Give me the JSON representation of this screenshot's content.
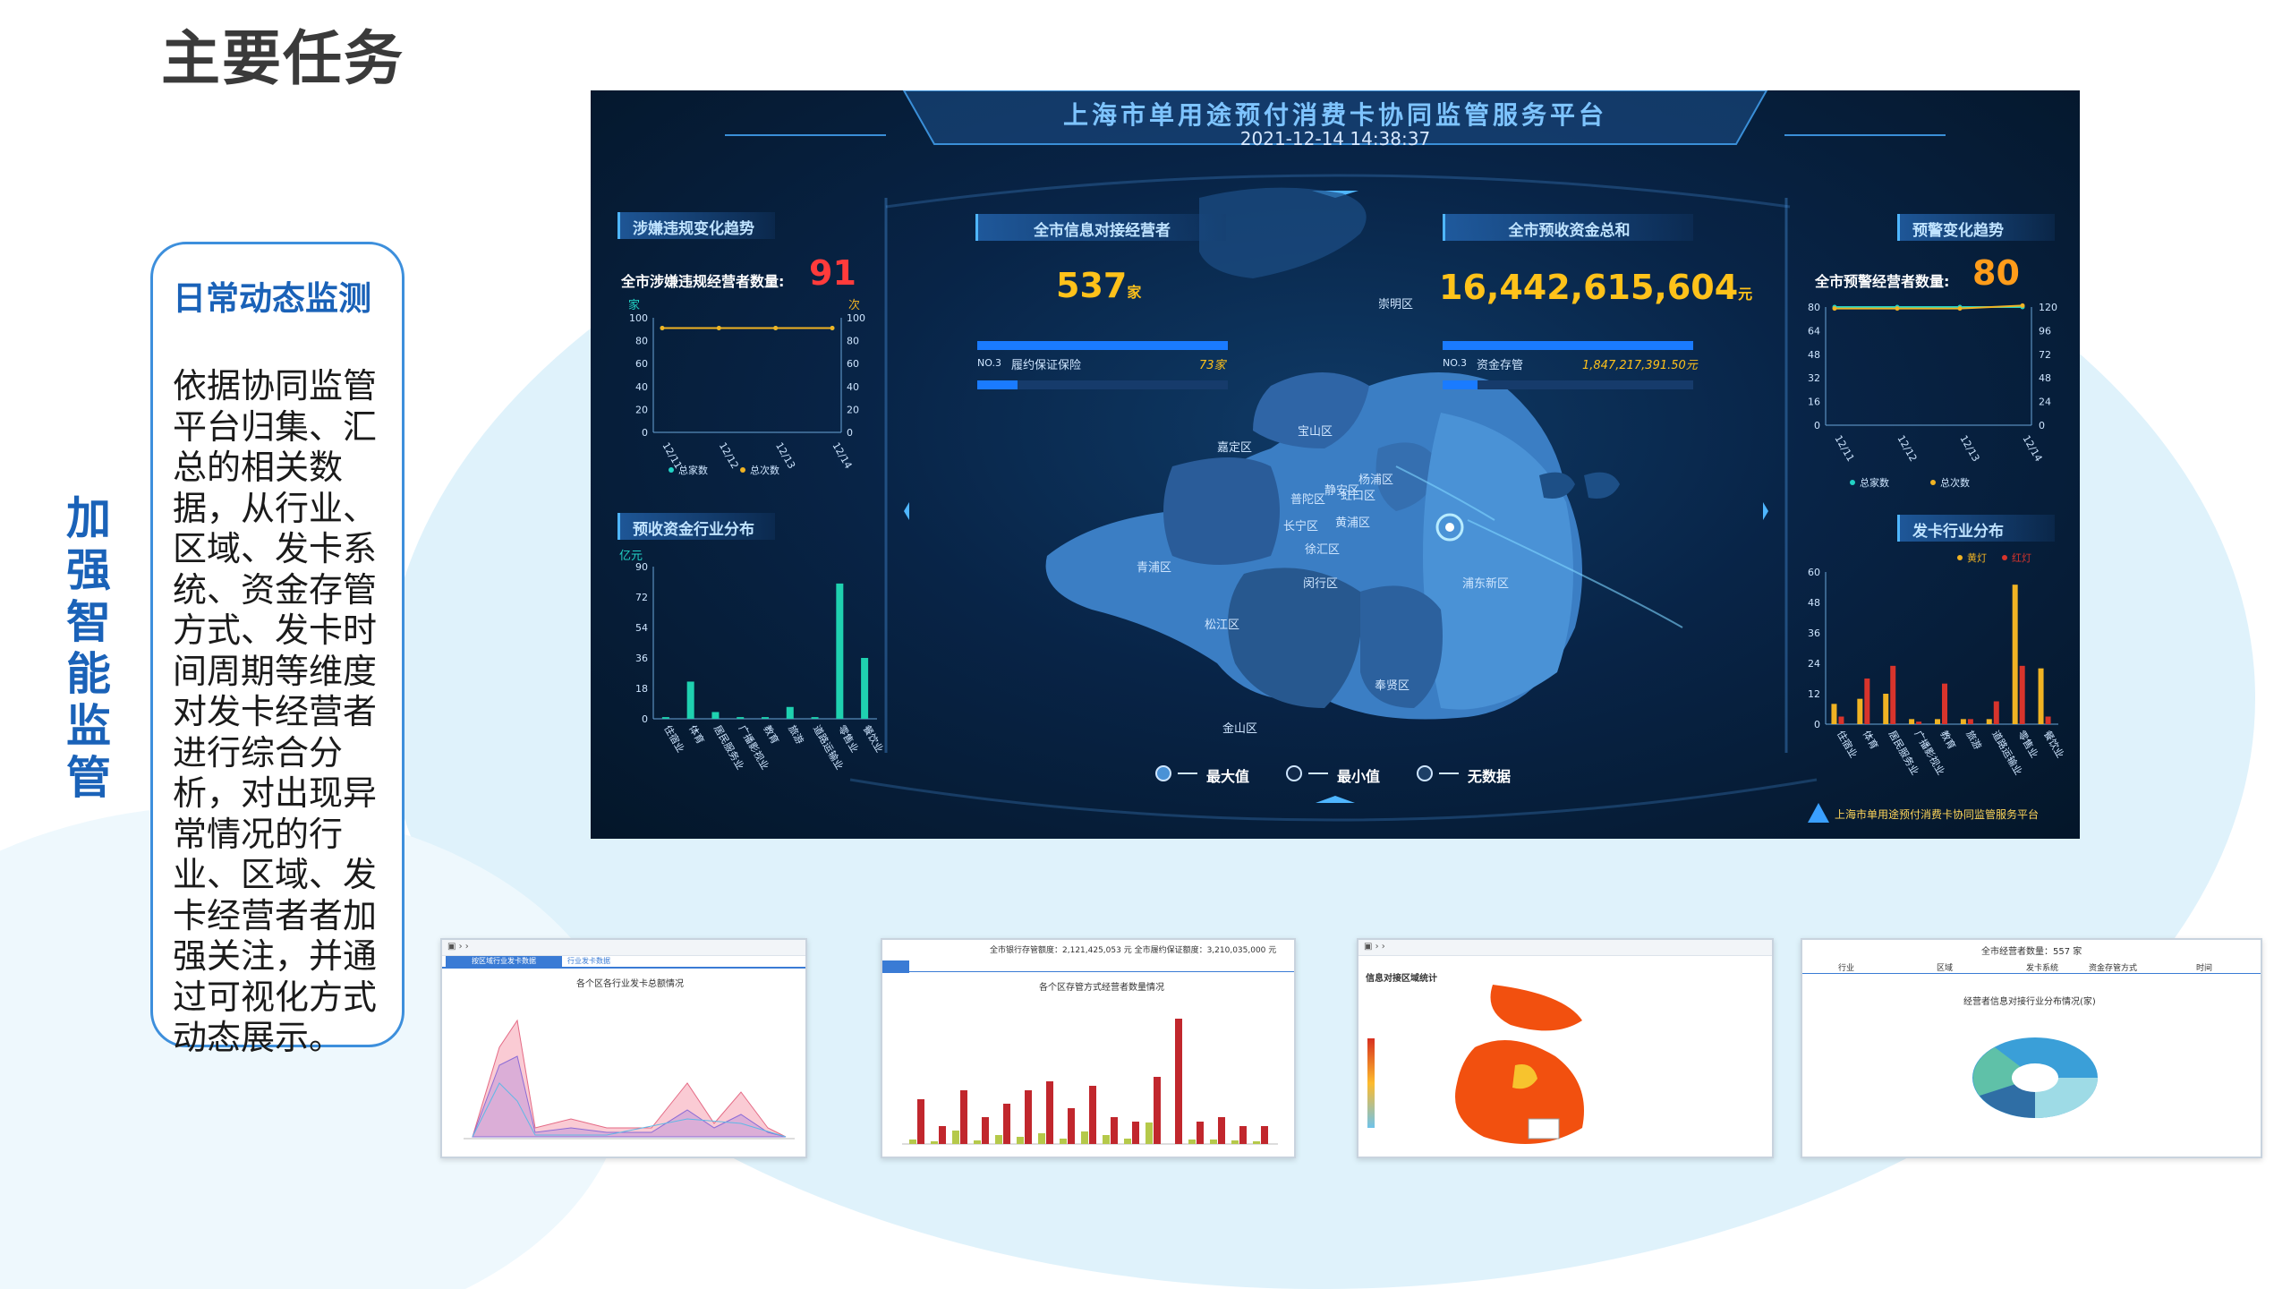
{
  "page": {
    "title": "主要任务",
    "side_title": "加强智能监管"
  },
  "card": {
    "heading": "日常动态监测",
    "body": "依据协同监管平台归集、汇总的相关数据，从行业、区域、发卡系统、资金存管方式、发卡时间周期等维度对发卡经营者进行综合分析，对出现异常情况的行业、区域、发卡经营者者加强关注，并通过可视化方式动态展示。"
  },
  "dashboard": {
    "title": "上海市单用途预付消费卡协同监管服务平台",
    "datetime": "2021-12-14 14:38:37",
    "panel_trend_title": "涉嫌违规变化趋势",
    "violation_label": "全市涉嫌违规经营者数量:",
    "violation_count": "91",
    "panel_prepaid_title": "预收资金行业分布",
    "prepaid_unit": "亿元",
    "panel_operators_title": "全市信息对接经营者",
    "operators_count": "537",
    "operators_unit": "家",
    "operators_no3": "NO.3",
    "operators_no3_name": "履约保证保险",
    "operators_no3_value": "73家",
    "panel_funds_title": "全市预收资金总和",
    "funds_total": "16,442,615,604",
    "funds_unit": "元",
    "funds_no3": "NO.3",
    "funds_no3_name": "资金存管",
    "funds_no3_value": "1,847,217,391.50元",
    "panel_warning_title": "预警变化趋势",
    "warning_label": "全市预警经营者数量:",
    "warning_count": "80",
    "panel_card_title": "发卡行业分布",
    "legend_max": "最大值",
    "legend_min": "最小值",
    "legend_none": "无数据",
    "logo_text": "上海市单用途预付消费卡协同监管服务平台",
    "map_labels": [
      "崇明区",
      "宝山区",
      "嘉定区",
      "杨浦区",
      "普陀区",
      "静安区",
      "虹口区",
      "长宁区",
      "黄浦区",
      "徐汇区",
      "青浦区",
      "闵行区",
      "浦东新区",
      "松江区",
      "奉贤区",
      "金山区"
    ]
  },
  "chart_data": [
    {
      "type": "line",
      "title": "涉嫌违规变化趋势",
      "categories": [
        "12/11",
        "12/12",
        "12/13",
        "12/14"
      ],
      "ylabel_left": "家",
      "ylabel_right": "次",
      "ylim": [
        0,
        100
      ],
      "yticks": [
        0,
        20,
        40,
        60,
        80,
        100
      ],
      "series": [
        {
          "name": "总家数",
          "color": "#22d3c5",
          "values": [
            91,
            91,
            91,
            91
          ]
        },
        {
          "name": "总次数",
          "color": "#f0b323",
          "values": [
            91,
            91,
            91,
            91
          ]
        }
      ]
    },
    {
      "type": "bar",
      "title": "预收资金行业分布",
      "ylabel": "亿元",
      "ylim": [
        0,
        90
      ],
      "yticks": [
        0,
        18,
        36,
        54,
        72,
        90
      ],
      "categories": [
        "住宿业",
        "体育",
        "居民服务业",
        "广播影视业",
        "教育",
        "旅游",
        "道路运输业",
        "零售业",
        "餐饮业"
      ],
      "values": [
        1,
        22,
        4,
        1,
        1,
        7,
        1,
        80,
        36
      ]
    },
    {
      "type": "line",
      "title": "预警变化趋势",
      "categories": [
        "12/11",
        "12/12",
        "12/13",
        "12/14"
      ],
      "ylim_left": [
        0,
        80
      ],
      "yticks_left": [
        0,
        16,
        32,
        48,
        64,
        80
      ],
      "ylim_right": [
        0,
        120
      ],
      "yticks_right": [
        0,
        24,
        48,
        72,
        96,
        120
      ],
      "series": [
        {
          "name": "总家数",
          "color": "#22d3c5",
          "values": [
            80,
            80,
            80,
            80
          ]
        },
        {
          "name": "总次数",
          "color": "#f0b323",
          "values": [
            79,
            79,
            79,
            81
          ]
        }
      ]
    },
    {
      "type": "bar",
      "title": "发卡行业分布",
      "ylim": [
        0,
        60
      ],
      "yticks": [
        0,
        12,
        24,
        36,
        48,
        60
      ],
      "categories": [
        "住宿业",
        "体育",
        "居民服务业",
        "广播影视业",
        "教育",
        "旅游",
        "道路运输业",
        "零售业",
        "餐饮业"
      ],
      "series": [
        {
          "name": "黄灯",
          "color": "#f0b323",
          "values": [
            8,
            10,
            12,
            2,
            2,
            2,
            2,
            55,
            22
          ]
        },
        {
          "name": "红灯",
          "color": "#d8342c",
          "values": [
            3,
            18,
            23,
            1,
            16,
            2,
            9,
            23,
            3
          ]
        }
      ]
    }
  ],
  "thumbnails": [
    {
      "title": "各个区各行业发卡总额情况",
      "tab1": "按区域行业发卡数据",
      "tab2": "行业发卡数据"
    },
    {
      "title": "各个区存管方式经营者数量情况",
      "header": "全市银行存管额度：2,121,425,053 元   全市履约保证额度：3,210,035,000 元"
    },
    {
      "title": "信息对接区域统计"
    },
    {
      "title": "经营者信息对接行业分布情况(家)",
      "header": "全市经营者数量：557 家",
      "tabs": [
        "行业",
        "区域",
        "发卡系统",
        "资金存管方式",
        "时间"
      ]
    }
  ]
}
